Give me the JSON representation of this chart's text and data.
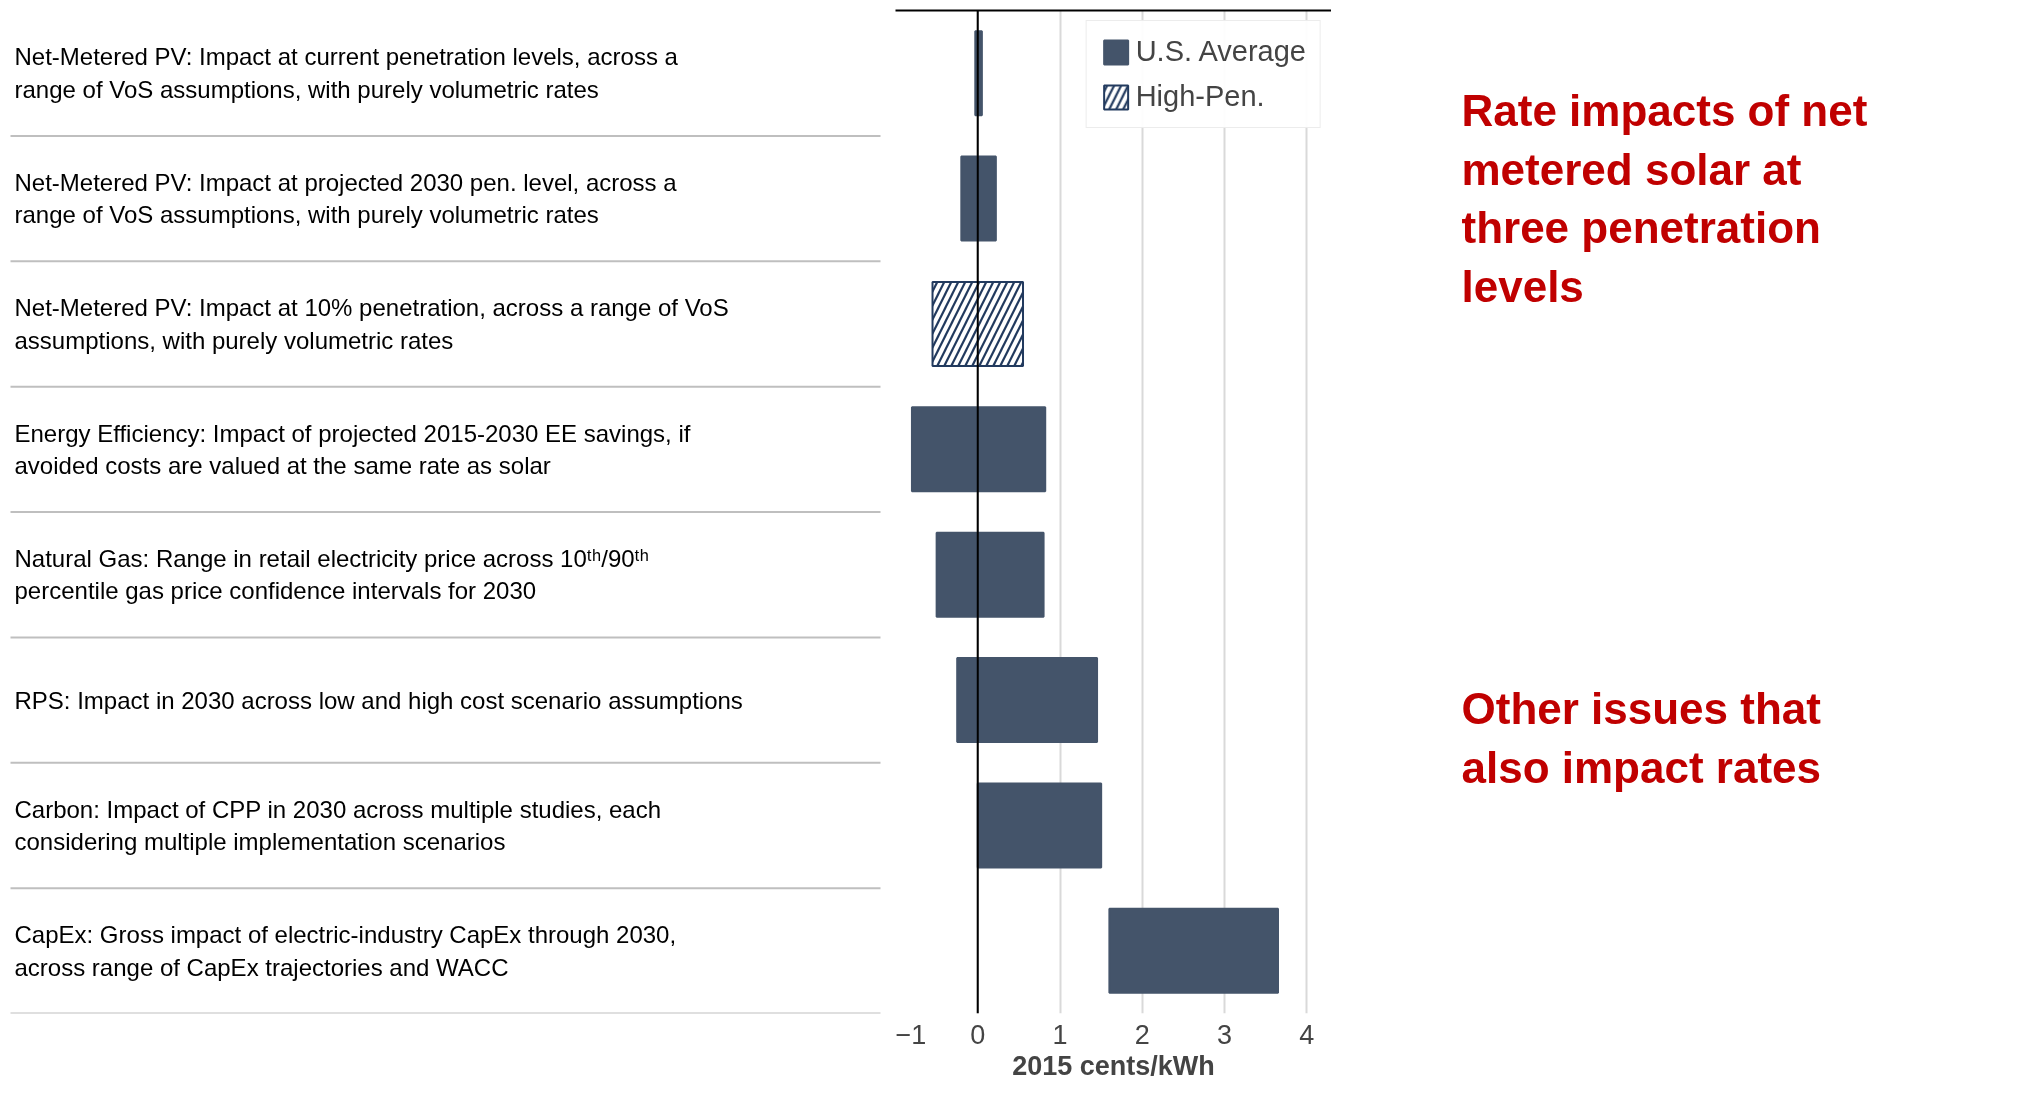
{
  "chart_data": {
    "type": "bar",
    "orientation": "horizontal",
    "categories": [
      "Net-Metered PV: Impact at current penetration levels, across a range of VoS assumptions, with purely volumetric rates",
      "Net-Metered PV: Impact at projected 2030 pen. level, across a range of VoS assumptions, with purely volumetric rates",
      "Net-Metered PV: Impact at 10% penetration, across a range of VoS assumptions, with purely volumetric rates",
      "Energy Efficiency: Impact of projected 2015-2030 EE savings, if avoided costs are valued at the same rate as solar",
      "Natural Gas: Range in retail electricity price across 10ᵗʰ/90ᵗʰ percentile gas price confidence intervals for 2030",
      "RPS: Impact in 2030 across low and high cost scenario assumptions",
      "Carbon: Impact of CPP in 2030 across multiple studies, each considering multiple implementation scenarios",
      "CapEx: Gross impact of electric-industry CapEx through 2030, across range of CapEx trajectories and WACC"
    ],
    "series": [
      {
        "name": "U.S. Average",
        "color": "#44546a",
        "base": [
          -0.03,
          -0.2,
          null,
          -0.8,
          -0.5,
          -0.25,
          0,
          1.6
        ],
        "values": [
          0.08,
          0.42,
          null,
          1.62,
          1.3,
          1.7,
          1.5,
          2.05
        ]
      },
      {
        "name": "High-Pen.",
        "color": "#223a5e",
        "base": [
          null,
          null,
          -0.55,
          null,
          null,
          null,
          null,
          null
        ],
        "values": [
          null,
          null,
          1.1,
          null,
          null,
          null,
          null,
          null
        ]
      }
    ],
    "xlim": [
      -1,
      4.3
    ],
    "xticks": [
      -1,
      0,
      1,
      2,
      3,
      4
    ],
    "xlabel": "2015 cents/kWh",
    "grid": "x",
    "legend": "top right",
    "ref_lines": [
      {
        "axis": "x",
        "value": 0,
        "color": "#000000"
      }
    ],
    "annotations": [
      "Rate impacts of net metered solar at three penetration levels",
      "Other issues that also impact rates"
    ]
  }
}
